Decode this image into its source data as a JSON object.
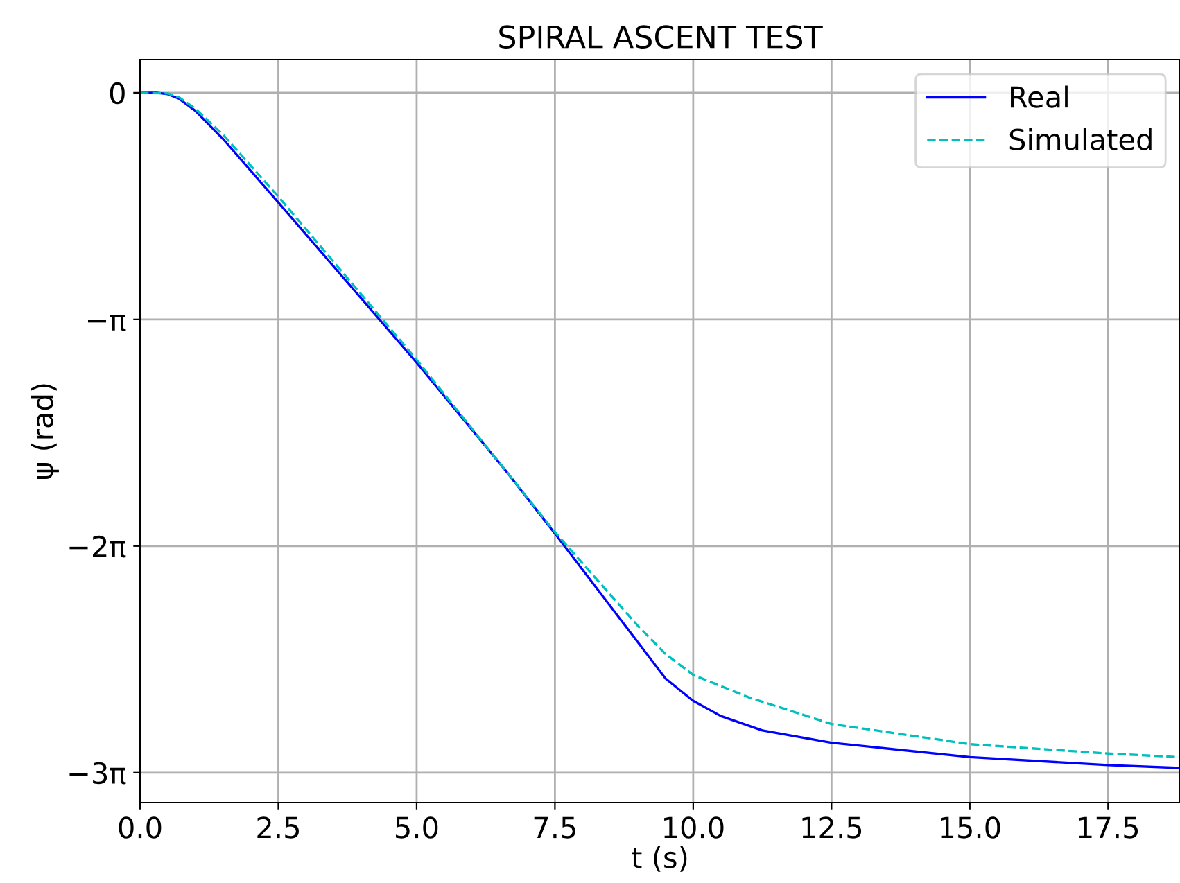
{
  "chart_data": {
    "type": "line",
    "title": "SPIRAL ASCENT TEST",
    "xlabel": "t (s)",
    "ylabel": "ψ (rad)",
    "xlim": [
      0,
      18.8
    ],
    "ylim": [
      -9.84,
      0.46
    ],
    "xticks": [
      {
        "value": 0,
        "label": "0.0"
      },
      {
        "value": 2.5,
        "label": "2.5"
      },
      {
        "value": 5,
        "label": "5.0"
      },
      {
        "value": 7.5,
        "label": "7.5"
      },
      {
        "value": 10,
        "label": "10.0"
      },
      {
        "value": 12.5,
        "label": "12.5"
      },
      {
        "value": 15,
        "label": "15.0"
      },
      {
        "value": 17.5,
        "label": "17.5"
      }
    ],
    "yticks": [
      0,
      {
        "value": -3.14159,
        "label": "−π"
      },
      {
        "value": -6.28319,
        "label": "−2π"
      },
      {
        "value": -9.42478,
        "label": "−3π"
      }
    ],
    "grid": true,
    "legend": "top right",
    "series": [
      {
        "name": "Real",
        "color": "#0000ff",
        "line_style": "solid",
        "x": [
          0,
          0.3,
          0.5,
          0.7,
          1,
          1.5,
          2.5,
          5,
          6.57,
          7.5,
          9.5,
          9.87,
          10,
          10.5,
          11.25,
          12.5,
          15,
          17.5,
          18.8
        ],
        "values": [
          0,
          0,
          -0.02,
          -0.08,
          -0.25,
          -0.64,
          -1.52,
          -3.74,
          -5.2,
          -6.11,
          -8.12,
          -8.35,
          -8.43,
          -8.64,
          -8.84,
          -9.01,
          -9.21,
          -9.32,
          -9.36
        ]
      },
      {
        "name": "Simulated",
        "color": "#00bfbf",
        "line_style": "dashed",
        "x": [
          0,
          0.5,
          0.7,
          1,
          1.5,
          2.5,
          5,
          7.5,
          9,
          9.5,
          10,
          11,
          12.5,
          15,
          17.5,
          18.8
        ],
        "values": [
          0,
          -0.01,
          -0.06,
          -0.22,
          -0.58,
          -1.44,
          -3.7,
          -6.09,
          -7.39,
          -7.78,
          -8.07,
          -8.38,
          -8.75,
          -9.03,
          -9.16,
          -9.21
        ]
      }
    ]
  }
}
